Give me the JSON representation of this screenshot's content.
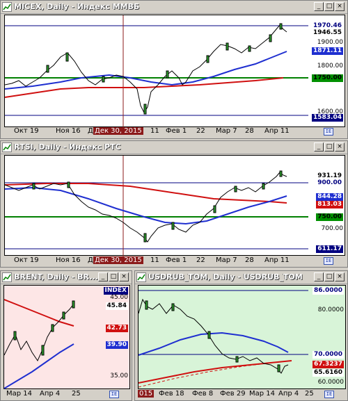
{
  "windows": [
    {
      "id": "micex",
      "title": "MICEX, Daily - Индекс ММВБ",
      "tags": [
        {
          "label": "1970.46",
          "bg": "#ffffff",
          "fg": "#000080"
        },
        {
          "label": "1946.55",
          "bg": "#ffffff",
          "fg": "#000000"
        },
        {
          "label": "1871.11",
          "bg": "#1f2fd0",
          "fg": "#ffffff"
        },
        {
          "label": "1750.00",
          "bg": "#009000",
          "fg": "#000000"
        },
        {
          "label": "1583.04",
          "bg": "#000080",
          "fg": "#ffffff"
        }
      ],
      "ticks": [
        "1900.00",
        "1800.00",
        "1600.00"
      ],
      "dates": [
        "Окт 19",
        "Ноя 16",
        "Д",
        "Дек 30, 2015",
        "11",
        "Фев 1",
        "22",
        "Мар 7",
        "28",
        "Апр 11"
      ]
    },
    {
      "id": "rtsi",
      "title": "RTSI, Daily - Индекс РТС",
      "tags": [
        {
          "label": "931.19",
          "bg": "#ffffff",
          "fg": "#000000"
        },
        {
          "label": "900.00",
          "bg": "#ffffff",
          "fg": "#000080"
        },
        {
          "label": "844.28",
          "bg": "#1f2fd0",
          "fg": "#ffffff"
        },
        {
          "label": "813.03",
          "bg": "#d01010",
          "fg": "#ffffff"
        },
        {
          "label": "750.00",
          "bg": "#009000",
          "fg": "#000000"
        },
        {
          "label": "611.17",
          "bg": "#000080",
          "fg": "#ffffff"
        }
      ],
      "ticks": [
        "700.00"
      ],
      "dates": [
        "Окт 19",
        "Ноя 16",
        "Д",
        "Дек 30, 2015",
        "11",
        "Фев 1",
        "22",
        "Мар 7",
        "28",
        "Апр 11"
      ]
    },
    {
      "id": "brent",
      "title": "BRENT, Daily - BR...",
      "index_label": "INDEX",
      "tags": [
        {
          "label": "45.84",
          "bg": "#ffffff",
          "fg": "#000000"
        },
        {
          "label": "42.73",
          "bg": "#d01010",
          "fg": "#ffffff"
        },
        {
          "label": "39.90",
          "bg": "#1f2fd0",
          "fg": "#ffffff"
        }
      ],
      "ticks": [
        "45.00",
        "35.00"
      ],
      "dates": [
        "Мар 14",
        "Апр 4",
        "25"
      ]
    },
    {
      "id": "usdrub",
      "title": "USDRUB_TOM, Daily - USDRUB_TOM",
      "tags": [
        {
          "label": "86.0000",
          "bg": "#ffffff",
          "fg": "#000080"
        },
        {
          "label": "70.0000",
          "bg": "#ffffff",
          "fg": "#000080"
        },
        {
          "label": "67.3237",
          "bg": "#d01010",
          "fg": "#ffffff"
        },
        {
          "label": "65.6160",
          "bg": "#ffffff",
          "fg": "#000000"
        }
      ],
      "ticks": [
        "80.0000",
        "60.0000"
      ],
      "dates": [
        "015",
        "Фев 18",
        "Фев 8",
        "Фев 29",
        "Мар 14",
        "Апр 4",
        "25"
      ]
    }
  ],
  "icons": {
    "system": "chart-window-icon",
    "corner": "sync-icon"
  }
}
